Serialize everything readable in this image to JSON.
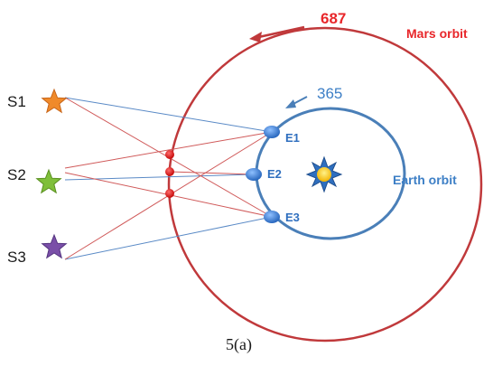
{
  "stars": [
    {
      "label": "S1",
      "color": "#f08a2a"
    },
    {
      "label": "S2",
      "color": "#7fbf3a"
    },
    {
      "label": "S3",
      "color": "#7a4fa8"
    }
  ],
  "earth_positions": [
    "E1",
    "E2",
    "E3"
  ],
  "mars_orbit": {
    "label": "Mars orbit",
    "period": "687",
    "color": "#c0393b",
    "text_color": "#e8262a"
  },
  "earth_orbit": {
    "label": "Earth orbit",
    "period": "365",
    "color": "#4a7fb8",
    "text_color": "#3d7fc6"
  },
  "sight_line_colors": {
    "blue": "#5a8ac6",
    "red": "#d05a5a"
  },
  "caption": "5(a)"
}
